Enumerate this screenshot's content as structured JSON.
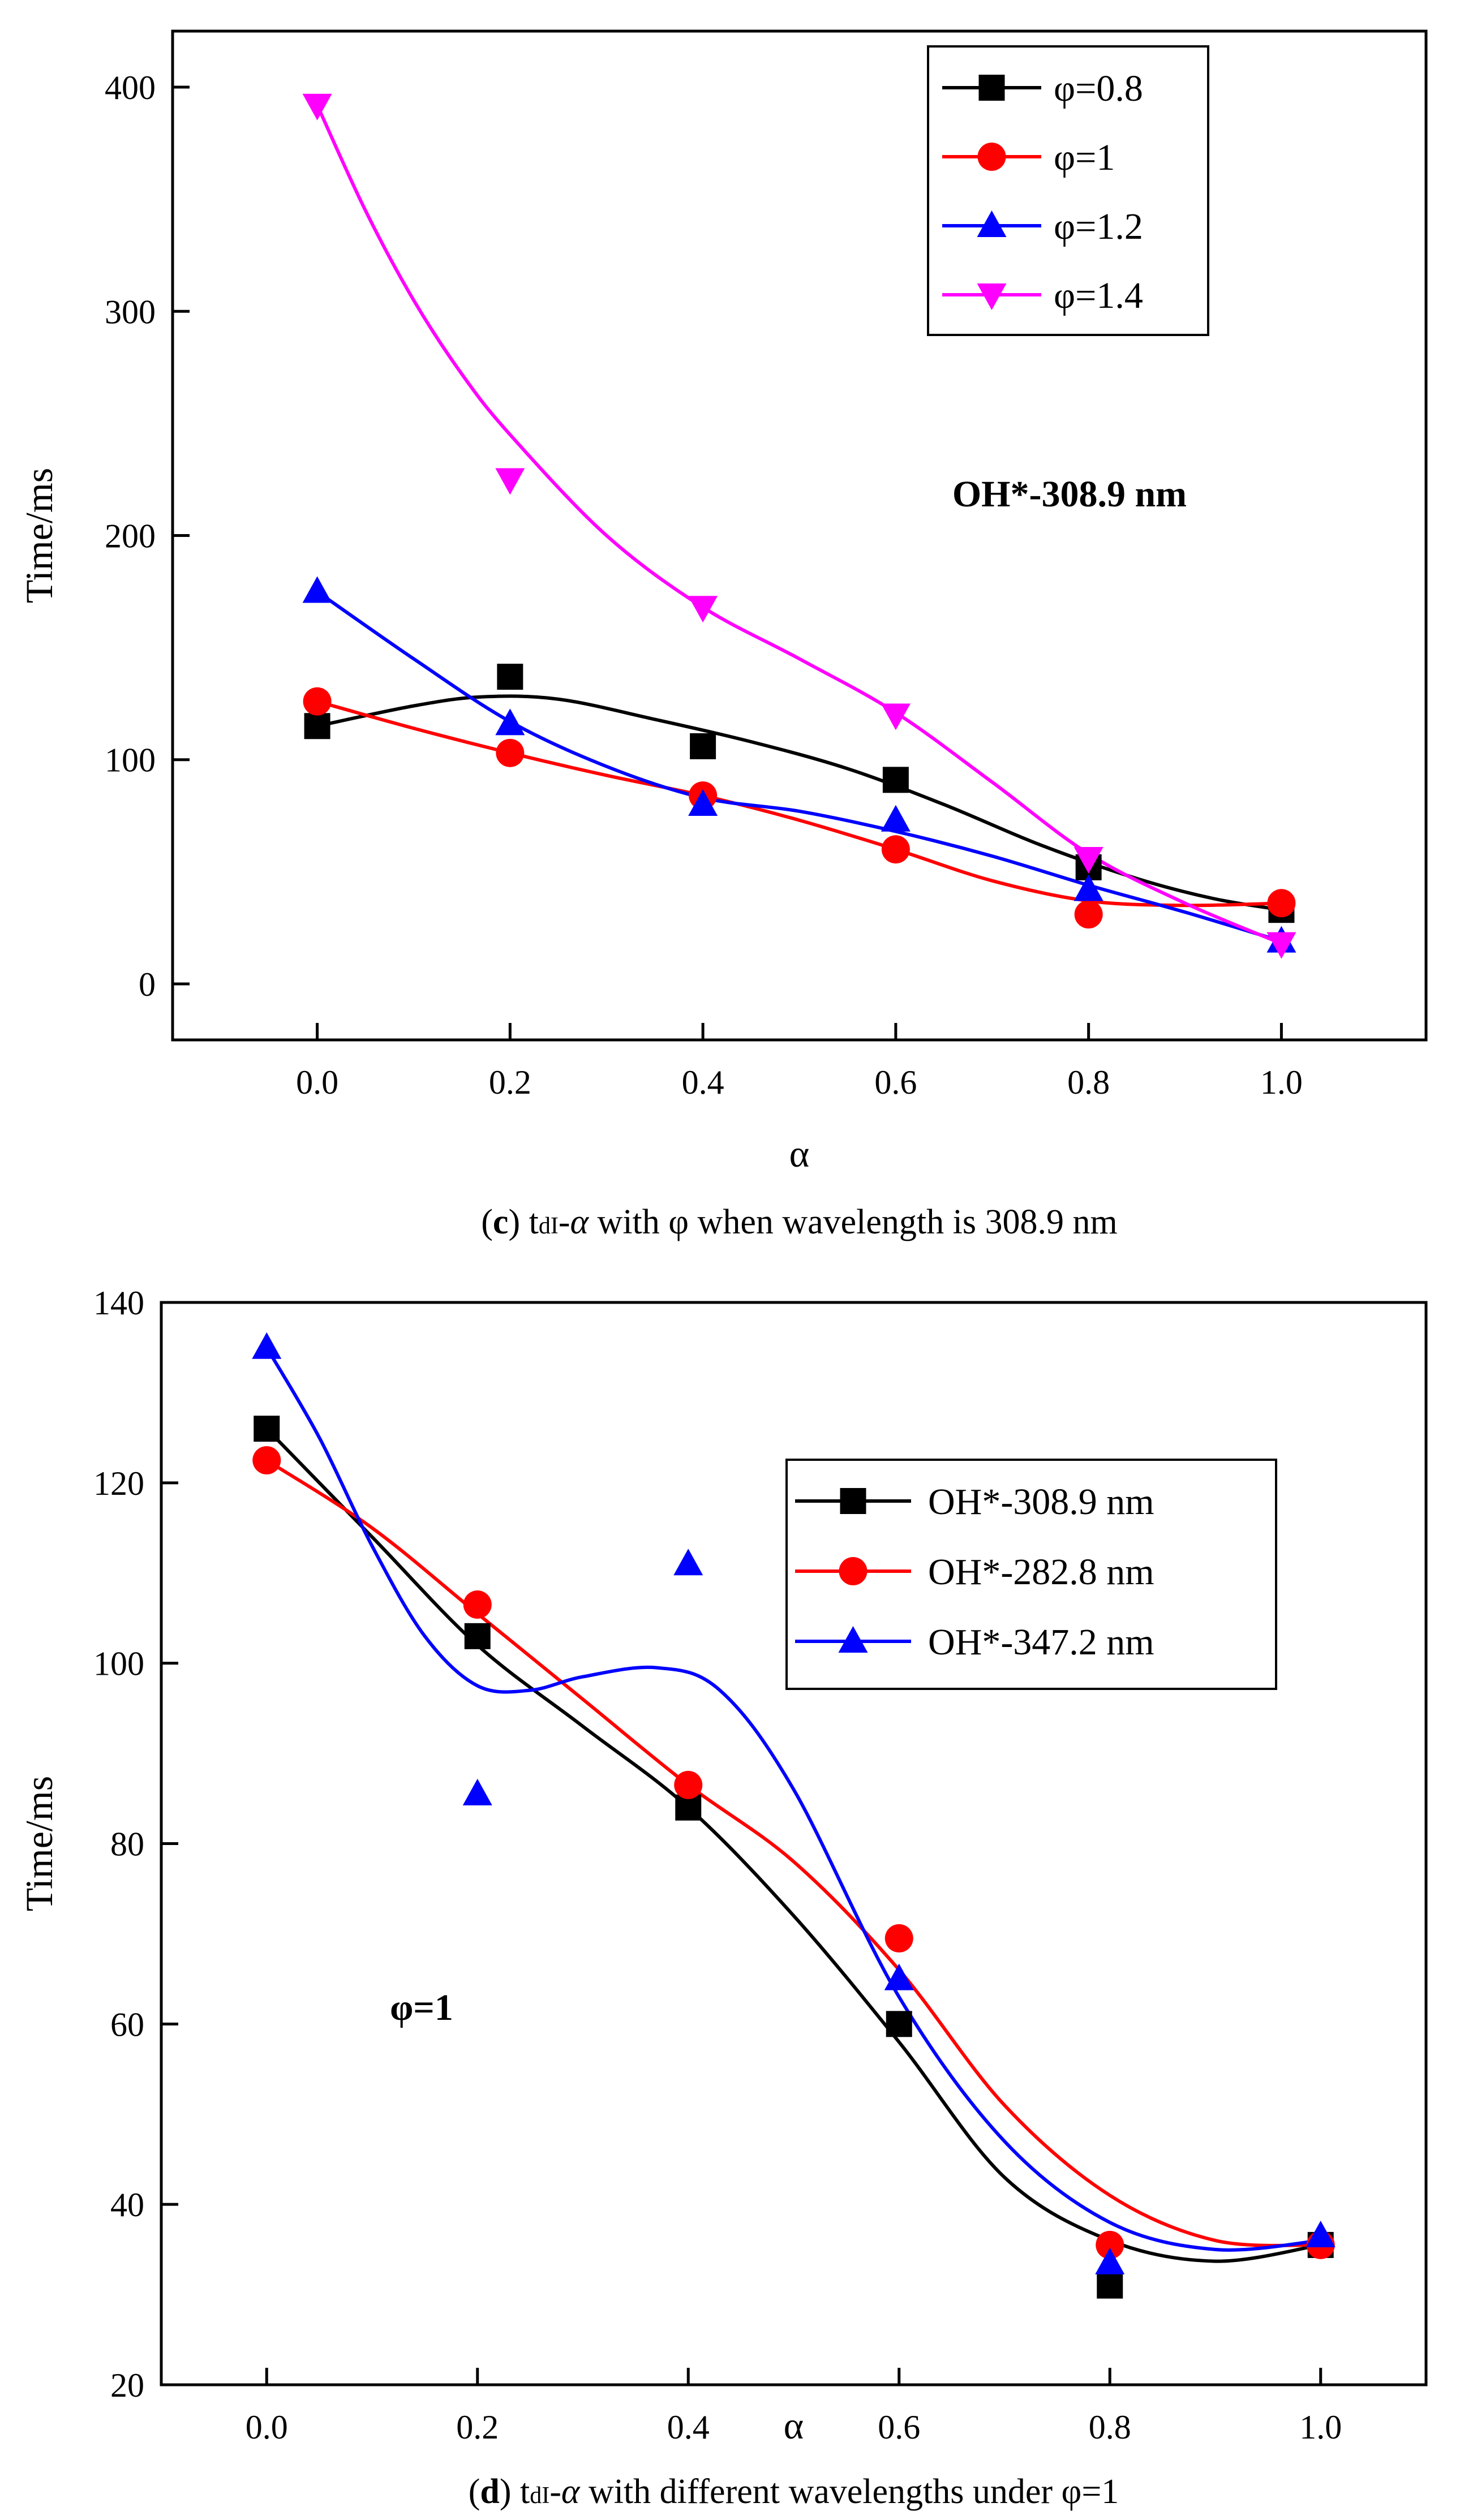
{
  "colors": {
    "black": "#000000",
    "red": "#ff0000",
    "blue": "#0000ff",
    "magenta": "#ff00ff"
  },
  "chart_data": [
    {
      "type": "line",
      "panel": "c",
      "caption": {
        "letter": "c",
        "open": "(",
        "close": ")",
        "sym_t": "t",
        "sym_sub": "dI",
        "sym_dash": "-",
        "sym_alpha": "α",
        "rest": " with φ when wavelength is 308.9 nm"
      },
      "xlabel": "α",
      "ylabel": "Time/ms",
      "xlim": [
        -0.15,
        1.15
      ],
      "ylim": [
        -25,
        425
      ],
      "xticks": [
        0.0,
        0.2,
        0.4,
        0.6,
        0.8,
        1.0
      ],
      "yticks": [
        0,
        100,
        200,
        300,
        400
      ],
      "xtick_labels": [
        "0.0",
        "0.2",
        "0.4",
        "0.6",
        "0.8",
        "1.0"
      ],
      "ytick_labels": [
        "0",
        "100",
        "200",
        "300",
        "400"
      ],
      "annotation": "OH*-308.9 nm",
      "legend_position": "top-right",
      "x": [
        0.0,
        0.2,
        0.4,
        0.6,
        0.8,
        1.0
      ],
      "series": [
        {
          "name": "φ=0.8",
          "color": "#000000",
          "marker": "square",
          "values": [
            115,
            137,
            106,
            91,
            52,
            33
          ],
          "curve_x": [
            0.0,
            0.1,
            0.17,
            0.25,
            0.35,
            0.45,
            0.55,
            0.65,
            0.75,
            0.85,
            0.93,
            1.0
          ],
          "curve_y": [
            115,
            124,
            128,
            127,
            118,
            108,
            96,
            80,
            62,
            47,
            38,
            33
          ]
        },
        {
          "name": "φ=1",
          "color": "#ff0000",
          "marker": "circle",
          "values": [
            126,
            103,
            84,
            60,
            31,
            36
          ],
          "curve_x": [
            0.0,
            0.1,
            0.2,
            0.3,
            0.4,
            0.5,
            0.6,
            0.7,
            0.8,
            0.9,
            1.0
          ],
          "curve_y": [
            126,
            114,
            103,
            93,
            84,
            73,
            60,
            46,
            37,
            35,
            36
          ]
        },
        {
          "name": "φ=1.2",
          "color": "#0000ff",
          "marker": "triangle-up",
          "values": [
            175,
            116,
            80,
            73,
            42,
            19
          ],
          "curve_x": [
            0.0,
            0.1,
            0.2,
            0.3,
            0.4,
            0.5,
            0.6,
            0.7,
            0.8,
            0.9,
            1.0
          ],
          "curve_y": [
            175,
            145,
            117,
            97,
            83,
            77,
            68,
            57,
            44,
            32,
            19
          ]
        },
        {
          "name": "φ=1.4",
          "color": "#ff00ff",
          "marker": "triangle-down",
          "values": [
            392,
            225,
            168,
            120,
            56,
            18
          ],
          "curve_x": [
            0.0,
            0.05,
            0.1,
            0.15,
            0.2,
            0.3,
            0.4,
            0.5,
            0.6,
            0.7,
            0.8,
            0.9,
            1.0
          ],
          "curve_y": [
            392,
            345,
            305,
            272,
            245,
            200,
            168,
            145,
            121,
            90,
            58,
            36,
            18
          ]
        }
      ]
    },
    {
      "type": "line",
      "panel": "d",
      "caption": {
        "letter": "d",
        "open": "(",
        "close": ")",
        "sym_t": "t",
        "sym_sub": "dI",
        "sym_dash": "-",
        "sym_alpha": "α",
        "rest": " with different wavelengths under φ=1"
      },
      "xlabel": "α",
      "ylabel": "Time/ms",
      "xlim": [
        -0.1,
        1.1
      ],
      "ylim": [
        20,
        140
      ],
      "xticks": [
        0.0,
        0.2,
        0.4,
        0.6,
        0.8,
        1.0
      ],
      "yticks": [
        20,
        40,
        60,
        80,
        100,
        120,
        140
      ],
      "xtick_labels": [
        "0.0",
        "0.2",
        "0.4",
        "0.6",
        "0.8",
        "1.0"
      ],
      "ytick_labels": [
        "20",
        "40",
        "60",
        "80",
        "100",
        "120",
        "140"
      ],
      "annotation": "φ=1",
      "legend_position": "top-right",
      "x": [
        0.0,
        0.2,
        0.4,
        0.6,
        0.8,
        1.0
      ],
      "series": [
        {
          "name": "OH*-308.9 nm",
          "color": "#000000",
          "marker": "square",
          "values": [
            126,
            103,
            84,
            60,
            31,
            35.5
          ],
          "curve_x": [
            0.0,
            0.1,
            0.2,
            0.3,
            0.4,
            0.5,
            0.6,
            0.7,
            0.8,
            0.9,
            1.0
          ],
          "curve_y": [
            126,
            114,
            102,
            93,
            84,
            72,
            58,
            43,
            36,
            33.7,
            35.5
          ]
        },
        {
          "name": "OH*-282.8 nm",
          "color": "#ff0000",
          "marker": "circle",
          "values": [
            122.5,
            106.5,
            86.5,
            69.5,
            35.5,
            35.5
          ],
          "curve_x": [
            0.0,
            0.1,
            0.2,
            0.3,
            0.4,
            0.5,
            0.6,
            0.7,
            0.8,
            0.9,
            1.0
          ],
          "curve_y": [
            122.5,
            115,
            105.5,
            96,
            86.5,
            78,
            66,
            51,
            41,
            36,
            35.5
          ]
        },
        {
          "name": "OH*-347.2 nm",
          "color": "#0000ff",
          "marker": "triangle-up",
          "values": [
            135,
            85.5,
            111,
            65,
            33.5,
            36.5
          ],
          "curve_x": [
            0.0,
            0.05,
            0.1,
            0.15,
            0.2,
            0.25,
            0.3,
            0.37,
            0.43,
            0.5,
            0.6,
            0.7,
            0.8,
            0.9,
            1.0
          ],
          "curve_y": [
            135,
            125,
            113,
            103,
            97.5,
            97,
            98.5,
            99.5,
            97,
            86,
            63,
            47,
            38,
            35,
            36
          ]
        }
      ]
    }
  ]
}
